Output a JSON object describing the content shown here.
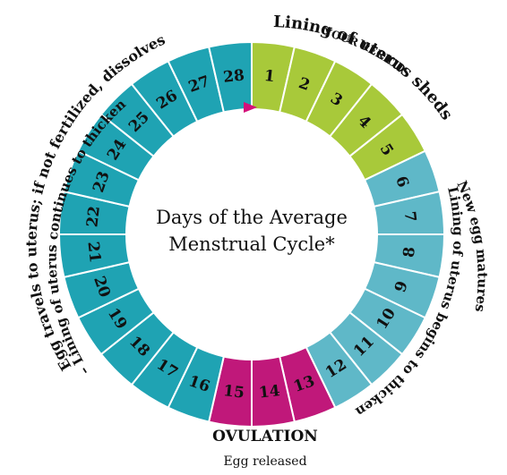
{
  "title_line1": "Days of the Average",
  "title_line2": "Menstrual Cycle*",
  "days": [
    {
      "n": "1",
      "phase": "period"
    },
    {
      "n": "2",
      "phase": "period"
    },
    {
      "n": "3",
      "phase": "period"
    },
    {
      "n": "4",
      "phase": "period"
    },
    {
      "n": "5",
      "phase": "period"
    },
    {
      "n": "6",
      "phase": "thicken"
    },
    {
      "n": "7",
      "phase": "thicken"
    },
    {
      "n": "8",
      "phase": "thicken"
    },
    {
      "n": "9",
      "phase": "thicken"
    },
    {
      "n": "10",
      "phase": "thicken"
    },
    {
      "n": "11",
      "phase": "thicken"
    },
    {
      "n": "12",
      "phase": "thicken"
    },
    {
      "n": "13",
      "phase": "ovulation"
    },
    {
      "n": "14",
      "phase": "ovulation"
    },
    {
      "n": "15",
      "phase": "ovulation"
    },
    {
      "n": "16",
      "phase": "luteal"
    },
    {
      "n": "17",
      "phase": "luteal"
    },
    {
      "n": "18",
      "phase": "luteal"
    },
    {
      "n": "19",
      "phase": "luteal"
    },
    {
      "n": "20",
      "phase": "luteal"
    },
    {
      "n": "21",
      "phase": "luteal"
    },
    {
      "n": "22",
      "phase": "luteal"
    },
    {
      "n": "23",
      "phase": "luteal"
    },
    {
      "n": "24",
      "phase": "luteal"
    },
    {
      "n": "25",
      "phase": "luteal"
    },
    {
      "n": "26",
      "phase": "luteal"
    },
    {
      "n": "27",
      "phase": "luteal"
    },
    {
      "n": "28",
      "phase": "luteal"
    }
  ],
  "colors": {
    "period": "#a8c93a",
    "thicken": "#5fb8c8",
    "ovulation": "#c0187a",
    "luteal": "#1fa3b3",
    "ring_gap": "#ffffff",
    "marker": "#d4107a"
  },
  "labels": {
    "your_period": "YOUR PERIOD",
    "lining_sheds": "Lining of uterus sheds",
    "new_egg": "New egg matures",
    "lining_thicken_right": "Lining of uterus begins to thicken",
    "egg_travels": "Egg travels to uterus; if not fertilized, dissolves",
    "lining_continues": "– Lining of  uterus continues to thicken",
    "ovulation": "OVULATION",
    "egg_released": "Egg released"
  }
}
